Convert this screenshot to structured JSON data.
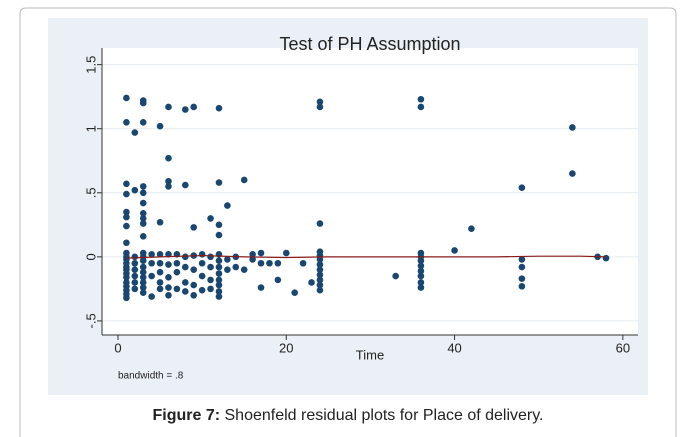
{
  "chart_data": {
    "type": "scatter",
    "title": "Test of PH Assumption",
    "x_label": "Time",
    "note": "bandwidth = .8",
    "xlim": [
      -1.9,
      61.8
    ],
    "ylim": [
      -0.61,
      1.63
    ],
    "xticks": [
      0,
      20,
      40,
      60
    ],
    "yticks": [
      {
        "value": -0.5,
        "label": "-.5"
      },
      0,
      {
        "value": 0.5,
        "label": ".5"
      },
      1,
      1.5
    ],
    "grid": true,
    "point_color": "#1a476f",
    "groups": [
      {
        "x": 1,
        "y": [
          1.24,
          1.05,
          0.57,
          0.49,
          0.35,
          0.31,
          0.24,
          0.11,
          0.03,
          0,
          -0.02,
          -0.05,
          -0.08,
          -0.1,
          -0.13,
          -0.16,
          -0.2,
          -0.23,
          -0.26,
          -0.29,
          -0.32
        ]
      },
      {
        "x": 2,
        "y": [
          0.97,
          0.52,
          0,
          -0.05,
          -0.1,
          -0.15,
          -0.2,
          -0.25
        ]
      },
      {
        "x": 3,
        "y": [
          1.22,
          1.2,
          1.05,
          0.55,
          0.5,
          0.42,
          0.34,
          0.3,
          0.26,
          0.16,
          0.03,
          0,
          -0.03,
          -0.08,
          -0.12,
          -0.16,
          -0.2,
          -0.24,
          -0.28
        ]
      },
      {
        "x": 4,
        "y": [
          0.02,
          -0.05,
          -0.15,
          -0.31
        ]
      },
      {
        "x": 5,
        "y": [
          1.02,
          0.27,
          0.02,
          -0.05,
          -0.12,
          -0.2,
          -0.25
        ]
      },
      {
        "x": 6,
        "y": [
          1.17,
          0.77,
          0.59,
          0.55,
          0.02,
          -0.06,
          -0.16,
          -0.24,
          -0.3
        ]
      },
      {
        "x": 7,
        "y": [
          0.02,
          -0.05,
          -0.12,
          -0.25
        ]
      },
      {
        "x": 8,
        "y": [
          1.15,
          0.56,
          0,
          -0.08,
          -0.2,
          -0.27
        ]
      },
      {
        "x": 9,
        "y": [
          1.17,
          0.23,
          0.01,
          -0.1,
          -0.22,
          -0.3
        ]
      },
      {
        "x": 10,
        "y": [
          0.02,
          -0.05,
          -0.15,
          -0.26
        ]
      },
      {
        "x": 11,
        "y": [
          0.3,
          0,
          -0.08,
          -0.18,
          -0.25
        ]
      },
      {
        "x": 12,
        "y": [
          1.16,
          0.58,
          0.25,
          0.17,
          0.02,
          -0.03,
          -0.08,
          -0.13,
          -0.18,
          -0.22,
          -0.27,
          -0.31
        ]
      },
      {
        "x": 13,
        "y": [
          0.4,
          -0.02,
          -0.1
        ]
      },
      {
        "x": 14,
        "y": [
          0,
          -0.08
        ]
      },
      {
        "x": 15,
        "y": [
          0.6,
          -0.1
        ]
      },
      {
        "x": 16,
        "y": [
          0.02,
          -0.02
        ]
      },
      {
        "x": 17,
        "y": [
          0.03,
          -0.05,
          -0.24
        ]
      },
      {
        "x": 18,
        "y": [
          -0.05
        ]
      },
      {
        "x": 19,
        "y": [
          -0.05,
          -0.18
        ]
      },
      {
        "x": 20,
        "y": [
          0.03
        ]
      },
      {
        "x": 21,
        "y": [
          -0.28
        ]
      },
      {
        "x": 22,
        "y": [
          -0.05
        ]
      },
      {
        "x": 23,
        "y": [
          -0.2
        ]
      },
      {
        "x": 24,
        "y": [
          1.21,
          1.17,
          0.26,
          0.04,
          0.01,
          -0.02,
          -0.06,
          -0.1,
          -0.14,
          -0.18,
          -0.22,
          -0.26
        ]
      },
      {
        "x": 33,
        "y": [
          -0.15
        ]
      },
      {
        "x": 36,
        "y": [
          1.23,
          1.17,
          0.03,
          0,
          -0.03,
          -0.07,
          -0.11,
          -0.15,
          -0.2,
          -0.24
        ]
      },
      {
        "x": 40,
        "y": [
          0.05
        ]
      },
      {
        "x": 42,
        "y": [
          0.22
        ]
      },
      {
        "x": 48,
        "y": [
          0.54,
          -0.02,
          -0.08,
          -0.17,
          -0.23
        ]
      },
      {
        "x": 54,
        "y": [
          1.01,
          0.65
        ]
      },
      {
        "x": 57,
        "y": [
          0
        ]
      },
      {
        "x": 58,
        "y": [
          -0.01
        ]
      }
    ],
    "smooth": {
      "color": "#8b1a1a",
      "x": [
        1,
        5,
        10,
        15,
        20,
        25,
        30,
        35,
        40,
        45,
        50,
        55,
        58
      ],
      "y": [
        -0.01,
        0,
        0.01,
        0,
        -0.005,
        0,
        0,
        0,
        0,
        0,
        0.005,
        0.005,
        0
      ]
    }
  },
  "caption": {
    "label": "Figure 7:",
    "text": " Shoenfeld residual plots for Place of delivery."
  }
}
